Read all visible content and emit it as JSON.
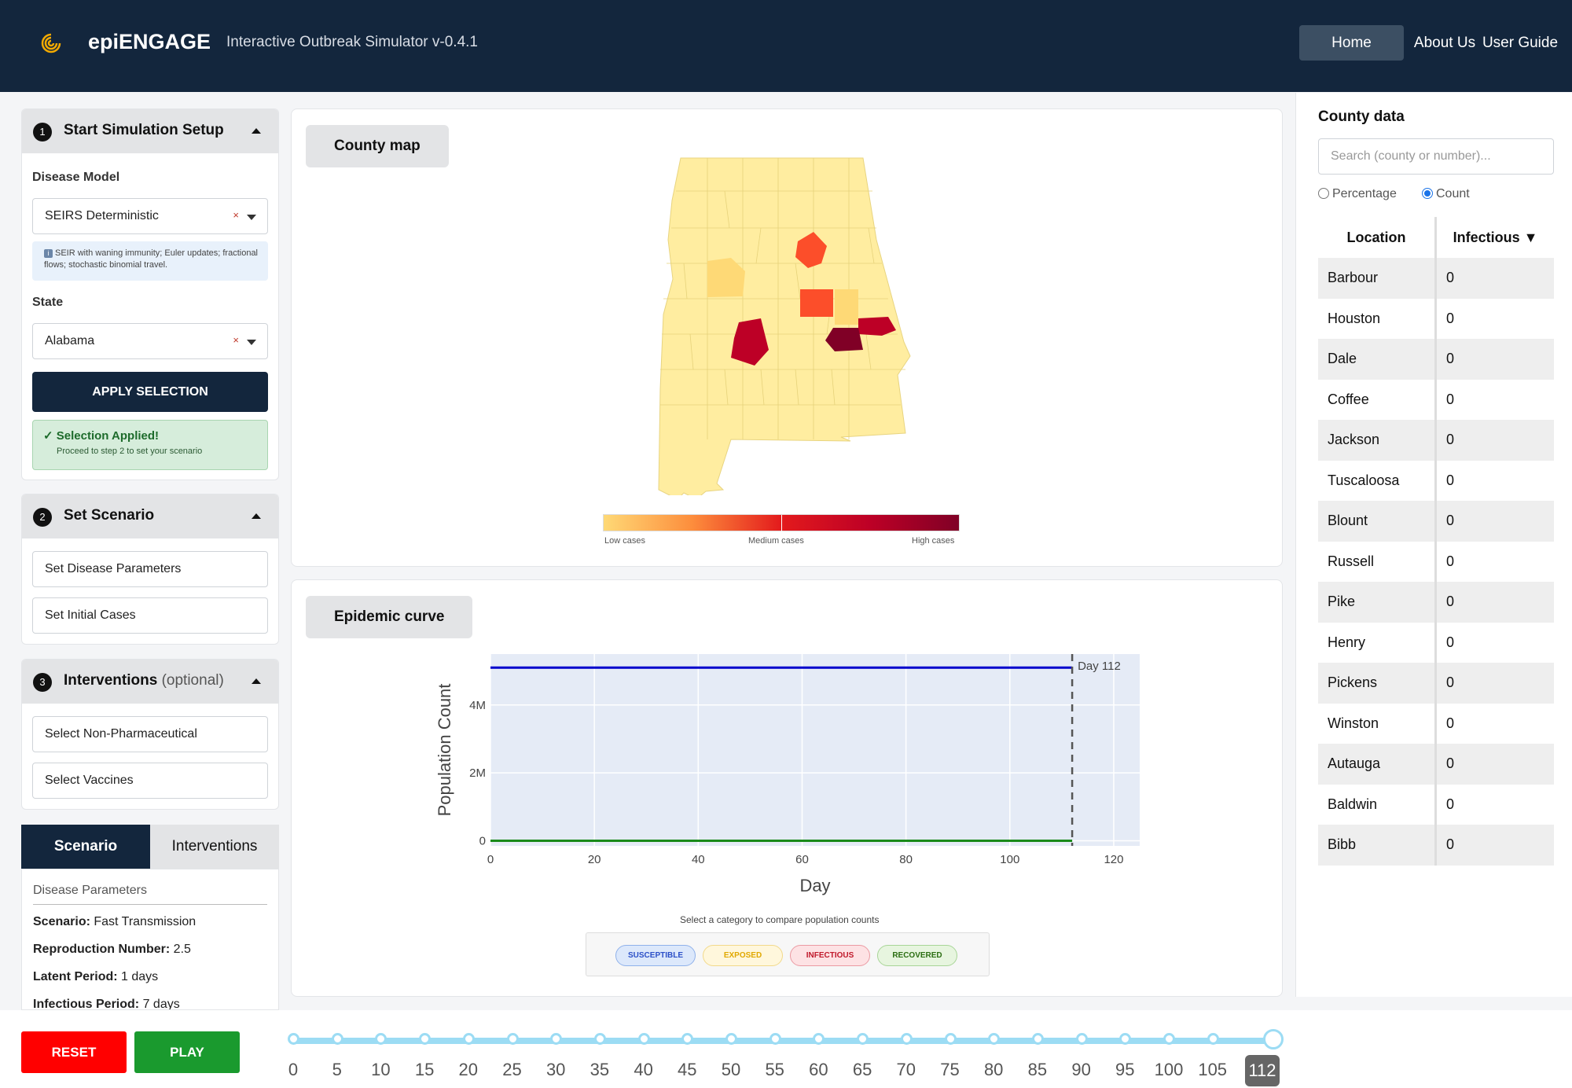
{
  "header": {
    "brand": "epiENGAGE",
    "subtitle": "Interactive Outbreak Simulator v-0.4.1",
    "nav": [
      "Home",
      "About Us",
      "User Guide"
    ],
    "colors": {
      "bg": "#13263d",
      "accent": "#f2a900"
    }
  },
  "setup": {
    "step": "1",
    "title": "Start Simulation Setup",
    "disease_label": "Disease Model",
    "disease_value": "SEIRS Deterministic",
    "info_icon": "info-icon",
    "info_text": "SEIR with waning immunity; Euler updates; fractional flows; stochastic binomial travel.",
    "state_label": "State",
    "state_value": "Alabama",
    "clear": "×",
    "apply": "APPLY SELECTION",
    "success_title": "Selection Applied!",
    "success_sub": "Proceed to step 2 to set your scenario"
  },
  "scenario_card": {
    "step": "2",
    "title": "Set Scenario",
    "buttons": [
      "Set Disease Parameters",
      "Set Initial Cases"
    ]
  },
  "interventions_card": {
    "step": "3",
    "title": "Interventions",
    "optional": "(optional)",
    "buttons": [
      "Select Non-Pharmaceutical",
      "Select Vaccines"
    ]
  },
  "tabs": [
    "Scenario",
    "Interventions"
  ],
  "scenario_panel": {
    "heading": "Disease Parameters",
    "rows": [
      {
        "k": "Scenario:",
        "v": " Fast Transmission"
      },
      {
        "k": "Reproduction Number:",
        "v": " 2.5"
      },
      {
        "k": "Latent Period:",
        "v": " 1 days"
      },
      {
        "k": "Infectious Period:",
        "v": " 7 days"
      }
    ]
  },
  "map": {
    "chip": "County map",
    "legend": [
      "Low cases",
      "Medium cases",
      "High cases"
    ]
  },
  "curve": {
    "chip": "Epidemic curve",
    "legend_title": "Select a category to compare population counts",
    "categories": [
      {
        "label": "SUSCEPTIBLE",
        "color": "#2b4fc7",
        "bg": "#dce8fb",
        "border": "#8fb1ea"
      },
      {
        "label": "EXPOSED",
        "color": "#e0a800",
        "bg": "#fff7dc",
        "border": "#f2d98a"
      },
      {
        "label": "INFECTIOUS",
        "color": "#c0182a",
        "bg": "#fde2e4",
        "border": "#eb9aa2"
      },
      {
        "label": "RECOVERED",
        "color": "#2b6e12",
        "bg": "#e7f5df",
        "border": "#a8d597"
      }
    ]
  },
  "chart_data": {
    "type": "line",
    "xlabel": "Day",
    "ylabel": "Population Count",
    "xlim": [
      0,
      125
    ],
    "ylim": [
      -150000,
      5500000
    ],
    "xticks": [
      0,
      20,
      40,
      60,
      80,
      100,
      120
    ],
    "yticks": [
      {
        "v": 0,
        "label": "0"
      },
      {
        "v": 2000000,
        "label": "2M"
      },
      {
        "v": 4000000,
        "label": "4M"
      }
    ],
    "annotation": {
      "x": 112,
      "label": "Day 112"
    },
    "series": [
      {
        "color": "#0000cc",
        "x": [
          0,
          112
        ],
        "y": [
          5100000,
          5100000
        ]
      },
      {
        "color": "#1a8a1a",
        "x": [
          0,
          112
        ],
        "y": [
          0,
          0
        ]
      }
    ]
  },
  "county_panel": {
    "title": "County data",
    "search_placeholder": "Search (county or number)...",
    "radio": [
      "Percentage",
      "Count"
    ],
    "selected_radio": "Count",
    "columns": [
      "Location",
      "Infectious ▼"
    ],
    "rows": [
      [
        "Barbour",
        "0"
      ],
      [
        "Houston",
        "0"
      ],
      [
        "Dale",
        "0"
      ],
      [
        "Coffee",
        "0"
      ],
      [
        "Jackson",
        "0"
      ],
      [
        "Tuscaloosa",
        "0"
      ],
      [
        "Blount",
        "0"
      ],
      [
        "Russell",
        "0"
      ],
      [
        "Pike",
        "0"
      ],
      [
        "Henry",
        "0"
      ],
      [
        "Pickens",
        "0"
      ],
      [
        "Winston",
        "0"
      ],
      [
        "Autauga",
        "0"
      ],
      [
        "Baldwin",
        "0"
      ],
      [
        "Bibb",
        "0"
      ]
    ]
  },
  "controls": {
    "reset": "RESET",
    "play": "PLAY",
    "slider_labels": [
      "0",
      "5",
      "10",
      "15",
      "20",
      "25",
      "30",
      "35",
      "40",
      "45",
      "50",
      "55",
      "60",
      "65",
      "70",
      "75",
      "80",
      "85",
      "90",
      "95",
      "100",
      "105"
    ],
    "current_day": "112"
  }
}
